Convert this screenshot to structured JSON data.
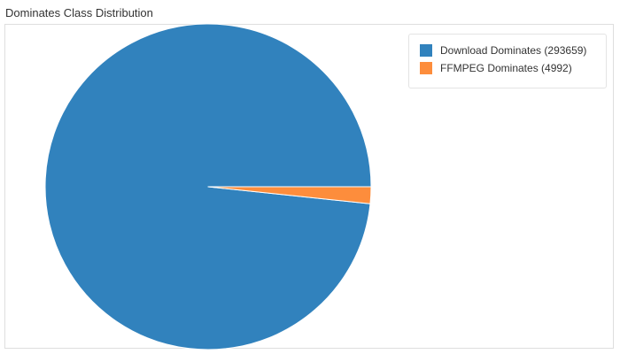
{
  "title": "Dominates Class Distribution",
  "chart_data": {
    "type": "pie",
    "title": "Dominates Class Distribution",
    "slices": [
      {
        "label": "Download Dominates (293659)",
        "value": 293659,
        "color": "#3182bd"
      },
      {
        "label": "FFMPEG Dominates (4992)",
        "value": 4992,
        "color": "#fd8d3c"
      }
    ],
    "legend_position": "top-right"
  }
}
